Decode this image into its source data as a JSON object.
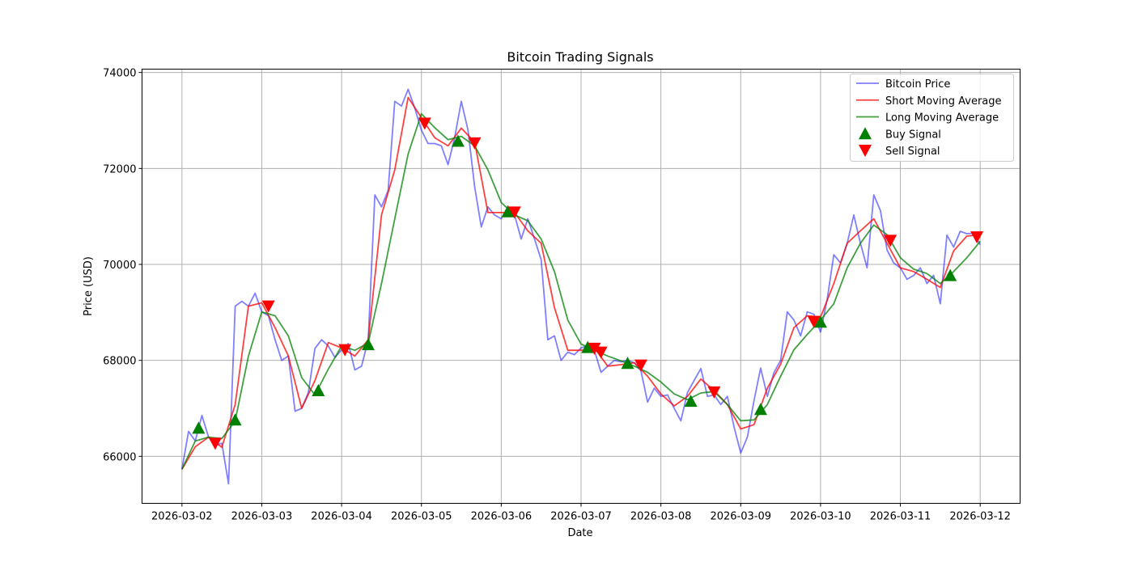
{
  "chart_data": {
    "type": "line",
    "title": "Bitcoin Trading Signals",
    "xlabel": "Date",
    "ylabel": "Price (USD)",
    "xlim": [
      "2026-03-01 12:00",
      "2026-03-12 12:00"
    ],
    "ylim": [
      65020,
      74070
    ],
    "xticks": [
      "2026-03-02",
      "2026-03-03",
      "2026-03-04",
      "2026-03-05",
      "2026-03-06",
      "2026-03-07",
      "2026-03-08",
      "2026-03-09",
      "2026-03-10",
      "2026-03-11",
      "2026-03-12"
    ],
    "yticks": [
      66000,
      68000,
      70000,
      72000,
      74000
    ],
    "grid": true,
    "legend_position": "top-right",
    "series": [
      {
        "name": "Bitcoin Price",
        "color": "#0000ff",
        "opacity": 0.5,
        "start": "2026-03-02 00:00",
        "freq_hours": 2,
        "values": [
          65730,
          66520,
          66320,
          66850,
          66400,
          66240,
          66270,
          65430,
          69130,
          69230,
          69130,
          69400,
          69010,
          68930,
          68430,
          68000,
          68090,
          66940,
          67000,
          67330,
          68250,
          68430,
          68300,
          68060,
          68220,
          68350,
          67800,
          67880,
          68430,
          71450,
          71200,
          71540,
          73400,
          73300,
          73650,
          73260,
          72800,
          72520,
          72520,
          72470,
          72080,
          72640,
          73400,
          72800,
          71620,
          70780,
          71200,
          71030,
          70950,
          71200,
          71030,
          70530,
          70950,
          70530,
          70100,
          68430,
          68510,
          68000,
          68170,
          68120,
          68260,
          68300,
          68210,
          67750,
          67880,
          68000,
          67970,
          68000,
          67950,
          67780,
          67130,
          67420,
          67250,
          67280,
          67000,
          66740,
          67330,
          67580,
          67830,
          67250,
          67280,
          67080,
          67250,
          66610,
          66070,
          66400,
          67160,
          67840,
          67250,
          67750,
          68000,
          69010,
          68840,
          68510,
          69010,
          68960,
          68590,
          69270,
          70200,
          70030,
          70440,
          71030,
          70440,
          69930,
          71450,
          71120,
          70300,
          70030,
          69930,
          69690,
          69770,
          69930,
          69600,
          69770,
          69180,
          70610,
          70360,
          70690,
          70640,
          70650,
          70410
        ]
      },
      {
        "name": "Short Moving Average",
        "color": "#ff0000",
        "opacity": 0.75,
        "start": "2026-03-02 00:00",
        "freq_hours": 4,
        "values": [
          65730,
          66200,
          66400,
          66190,
          67080,
          69130,
          69200,
          68680,
          68090,
          67000,
          67580,
          68370,
          68260,
          68090,
          68430,
          71030,
          71970,
          73480,
          73060,
          72640,
          72470,
          72840,
          72550,
          71080,
          71080,
          71080,
          70700,
          70440,
          69100,
          68210,
          68210,
          68260,
          67880,
          67910,
          67950,
          67670,
          67300,
          67050,
          67250,
          67610,
          67370,
          67080,
          66570,
          66660,
          67420,
          67920,
          68680,
          68930,
          68900,
          69600,
          70440,
          70700,
          70950,
          70440,
          69930,
          69850,
          69690,
          69520,
          70280,
          70590,
          70620
        ]
      },
      {
        "name": "Long Moving Average",
        "color": "#008000",
        "opacity": 0.75,
        "start": "2026-03-02 00:00",
        "freq_hours": 4,
        "values": [
          65730,
          66320,
          66400,
          66370,
          66740,
          68090,
          69010,
          68930,
          68510,
          67640,
          67280,
          67820,
          68300,
          68210,
          68360,
          69600,
          70950,
          72300,
          73140,
          72850,
          72600,
          72670,
          72470,
          71970,
          71290,
          71030,
          70910,
          70530,
          69850,
          68840,
          68340,
          68210,
          68090,
          67990,
          67880,
          67750,
          67550,
          67300,
          67180,
          67320,
          67350,
          67080,
          66740,
          66760,
          67080,
          67670,
          68220,
          68540,
          68840,
          69180,
          69930,
          70440,
          70820,
          70620,
          70140,
          69900,
          69810,
          69600,
          69850,
          70140,
          70480
        ]
      }
    ],
    "signals": [
      {
        "name": "Buy Signal",
        "marker": "triangle-up",
        "color": "#008000",
        "points": [
          [
            "2026-03-02 05:00",
            66590
          ],
          [
            "2026-03-02 16:00",
            66760
          ],
          [
            "2026-03-03 17:00",
            67370
          ],
          [
            "2026-03-04 08:00",
            68330
          ],
          [
            "2026-03-05 11:00",
            72570
          ],
          [
            "2026-03-06 02:00",
            71100
          ],
          [
            "2026-03-07 02:00",
            68270
          ],
          [
            "2026-03-07 14:00",
            67940
          ],
          [
            "2026-03-08 09:00",
            67150
          ],
          [
            "2026-03-09 06:00",
            66980
          ],
          [
            "2026-03-10 00:00",
            68800
          ],
          [
            "2026-03-11 15:00",
            69770
          ]
        ]
      },
      {
        "name": "Sell Signal",
        "marker": "triangle-down",
        "color": "#ff0000",
        "points": [
          [
            "2026-03-02 10:00",
            66270
          ],
          [
            "2026-03-03 02:00",
            69130
          ],
          [
            "2026-03-04 01:00",
            68220
          ],
          [
            "2026-03-05 01:00",
            72940
          ],
          [
            "2026-03-05 16:00",
            72530
          ],
          [
            "2026-03-06 04:00",
            71090
          ],
          [
            "2026-03-07 04:00",
            68250
          ],
          [
            "2026-03-07 06:00",
            68170
          ],
          [
            "2026-03-07 18:00",
            67900
          ],
          [
            "2026-03-08 16:00",
            67340
          ],
          [
            "2026-03-09 22:00",
            68810
          ],
          [
            "2026-03-10 21:00",
            70500
          ],
          [
            "2026-03-11 23:00",
            70570
          ]
        ]
      }
    ]
  }
}
